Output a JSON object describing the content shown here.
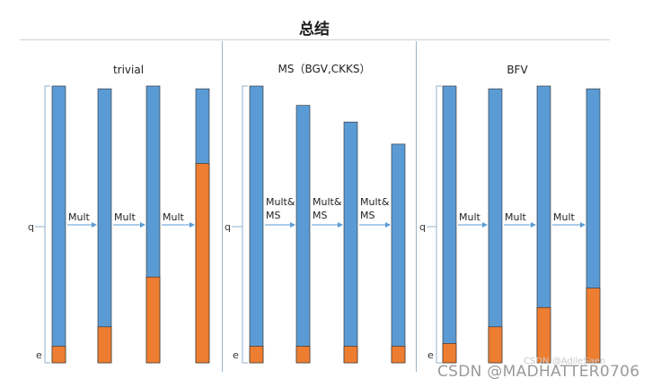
{
  "title": "总结",
  "colors": {
    "modulus": "#5b9bd5",
    "noise": "#ed7d31",
    "bar_border": "#2b2b2b",
    "arrow": "#5b9bd5",
    "bracket": "#8fb0cf"
  },
  "axis_labels": {
    "modulus": "q",
    "noise": "e"
  },
  "panels": [
    {
      "title": "trivial",
      "step_labels": [
        [
          "Mult"
        ],
        [
          "Mult"
        ],
        [
          "Mult"
        ]
      ],
      "stages": [
        {
          "modulus_level": 1.0,
          "noise_level": 0.06
        },
        {
          "modulus_level": 0.99,
          "noise_level": 0.13
        },
        {
          "modulus_level": 1.0,
          "noise_level": 0.31
        },
        {
          "modulus_level": 0.99,
          "noise_level": 0.72
        }
      ]
    },
    {
      "title": "MS（BGV,CKKS）",
      "step_labels": [
        [
          "Mult&",
          "MS"
        ],
        [
          "Mult&",
          "MS"
        ],
        [
          "Mult&",
          "MS"
        ]
      ],
      "stages": [
        {
          "modulus_level": 1.0,
          "noise_level": 0.06
        },
        {
          "modulus_level": 0.93,
          "noise_level": 0.06
        },
        {
          "modulus_level": 0.87,
          "noise_level": 0.06
        },
        {
          "modulus_level": 0.79,
          "noise_level": 0.06
        }
      ]
    },
    {
      "title": "BFV",
      "step_labels": [
        [
          "Mult"
        ],
        [
          "Mult"
        ],
        [
          "Mult"
        ]
      ],
      "stages": [
        {
          "modulus_level": 1.0,
          "noise_level": 0.07
        },
        {
          "modulus_level": 0.99,
          "noise_level": 0.13
        },
        {
          "modulus_level": 1.0,
          "noise_level": 0.2
        },
        {
          "modulus_level": 0.99,
          "noise_level": 0.27
        }
      ]
    }
  ],
  "watermark_small": "CSDN @AdileSaen",
  "watermark": "CSDN @MADHATTER0706"
}
